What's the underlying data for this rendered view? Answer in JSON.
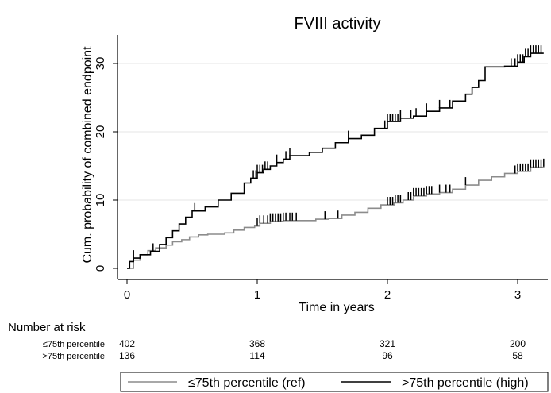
{
  "chart_data": {
    "type": "line",
    "title": "FVIII activity",
    "xlabel": "Time in years",
    "ylabel": "Cum. probability of combined endpoint",
    "xlim": [
      0,
      3.2
    ],
    "ylim": [
      0,
      34
    ],
    "xticks": [
      0,
      1,
      2,
      3
    ],
    "yticks": [
      0,
      10,
      20,
      30
    ],
    "grid": true,
    "series": [
      {
        "name": "≤75th percentile (ref)",
        "color": "#8c8c8c",
        "x": [
          0.0,
          0.05,
          0.1,
          0.16,
          0.22,
          0.3,
          0.35,
          0.42,
          0.48,
          0.55,
          0.62,
          0.75,
          0.82,
          0.9,
          0.98,
          1.02,
          1.1,
          1.2,
          1.35,
          1.45,
          1.55,
          1.65,
          1.75,
          1.85,
          1.95,
          2.05,
          2.12,
          2.2,
          2.3,
          2.4,
          2.5,
          2.6,
          2.7,
          2.8,
          2.9,
          3.0,
          3.1,
          3.2
        ],
        "y": [
          0.0,
          1.2,
          2.0,
          2.6,
          3.0,
          3.4,
          3.9,
          4.2,
          4.6,
          4.9,
          5.0,
          5.2,
          5.6,
          6.0,
          6.2,
          6.6,
          6.9,
          7.0,
          7.0,
          7.2,
          7.3,
          7.8,
          8.2,
          8.8,
          9.3,
          9.6,
          10.0,
          10.6,
          10.9,
          11.1,
          11.6,
          12.2,
          12.9,
          13.4,
          13.9,
          14.2,
          14.8,
          14.9
        ],
        "censor_x": [
          1.0,
          1.02,
          1.05,
          1.08,
          1.1,
          1.12,
          1.14,
          1.16,
          1.18,
          1.2,
          1.22,
          1.25,
          1.27,
          1.3,
          1.52,
          1.62,
          2.0,
          2.02,
          2.04,
          2.06,
          2.08,
          2.1,
          2.16,
          2.18,
          2.2,
          2.22,
          2.24,
          2.26,
          2.28,
          2.3,
          2.32,
          2.34,
          2.4,
          2.45,
          2.48,
          2.6,
          2.98,
          3.0,
          3.02,
          3.04,
          3.06,
          3.08,
          3.1,
          3.12,
          3.14,
          3.16,
          3.18,
          3.2
        ]
      },
      {
        "name": ">75th percentile (high)",
        "color": "#000000",
        "x": [
          0.0,
          0.02,
          0.05,
          0.1,
          0.18,
          0.25,
          0.3,
          0.35,
          0.4,
          0.45,
          0.5,
          0.6,
          0.7,
          0.8,
          0.9,
          0.95,
          1.0,
          1.05,
          1.1,
          1.15,
          1.2,
          1.25,
          1.4,
          1.5,
          1.6,
          1.7,
          1.8,
          1.9,
          2.0,
          2.1,
          2.2,
          2.3,
          2.4,
          2.5,
          2.6,
          2.65,
          2.7,
          2.75,
          2.9,
          3.0,
          3.05,
          3.1,
          3.2
        ],
        "y": [
          0.0,
          1.0,
          1.5,
          2.0,
          2.5,
          3.5,
          4.5,
          5.5,
          6.5,
          7.5,
          8.4,
          9.0,
          10.0,
          11.0,
          12.5,
          13.2,
          14.0,
          14.5,
          15.0,
          15.5,
          16.0,
          16.5,
          17.0,
          17.6,
          18.4,
          19.0,
          19.5,
          20.5,
          21.5,
          22.0,
          22.3,
          23.0,
          23.5,
          24.5,
          25.5,
          26.5,
          27.5,
          29.5,
          29.6,
          30.2,
          31.0,
          31.5,
          31.5
        ],
        "censor_x": [
          0.05,
          0.2,
          0.52,
          0.97,
          0.99,
          1.0,
          1.02,
          1.04,
          1.06,
          1.08,
          1.15,
          1.22,
          1.25,
          1.7,
          1.98,
          2.0,
          2.02,
          2.04,
          2.06,
          2.08,
          2.1,
          2.18,
          2.22,
          2.3,
          2.4,
          2.48,
          2.95,
          2.98,
          3.0,
          3.02,
          3.04,
          3.06,
          3.08,
          3.1,
          3.12,
          3.14,
          3.16,
          3.18
        ]
      }
    ],
    "risk_table": {
      "title": "Number at risk",
      "rows": [
        {
          "label": "≤75th percentile",
          "values": [
            "402",
            "368",
            "321",
            "200"
          ]
        },
        {
          "label": ">75th percentile",
          "values": [
            "136",
            "114",
            "96",
            "58"
          ]
        }
      ]
    },
    "legend": {
      "placement": "bottom",
      "entries": [
        "≤75th percentile (ref)",
        ">75th percentile (high)"
      ]
    }
  }
}
